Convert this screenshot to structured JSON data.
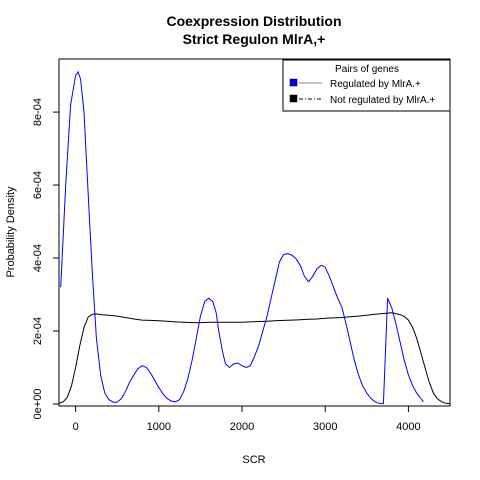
{
  "chart_data": {
    "type": "line",
    "title": "Coexpression Distribution",
    "subtitle": "Strict Regulon MlrA,+",
    "xlabel": "SCR",
    "ylabel": "Probability Density",
    "xlim": [
      -200,
      4500
    ],
    "ylim": [
      0,
      0.00094
    ],
    "xticks": [
      0,
      1000,
      2000,
      3000,
      4000
    ],
    "xtick_labels": [
      "0",
      "1000",
      "2000",
      "3000",
      "4000"
    ],
    "yticks": [
      0,
      0.0002,
      0.0004,
      0.0006,
      0.0008
    ],
    "ytick_labels": [
      "0e+00",
      "2e-04",
      "4e-04",
      "6e-04",
      "8e-04"
    ],
    "grid": false,
    "legend": {
      "title": "Pairs of genes",
      "placement": "top-right",
      "entries": [
        "Regulated by  MlrA.+",
        "Not regulated by  MlrA.+"
      ]
    },
    "series": [
      {
        "name": "Regulated by  MlrA.+",
        "color": "#0000ff",
        "x": [
          -180,
          -120,
          -60,
          0,
          30,
          60,
          100,
          150,
          200,
          250,
          300,
          350,
          400,
          450,
          500,
          550,
          600,
          650,
          700,
          750,
          800,
          850,
          900,
          950,
          1000,
          1050,
          1100,
          1150,
          1200,
          1250,
          1300,
          1350,
          1400,
          1450,
          1500,
          1550,
          1600,
          1650,
          1690,
          1720,
          1760,
          1800,
          1850,
          1900,
          1950,
          2000,
          2050,
          2100,
          2150,
          2200,
          2250,
          2300,
          2350,
          2400,
          2450,
          2500,
          2550,
          2600,
          2650,
          2700,
          2750,
          2800,
          2850,
          2900,
          2950,
          3000,
          3050,
          3100,
          3150,
          3200,
          3250,
          3300,
          3350,
          3400,
          3450,
          3500,
          3550,
          3600,
          3650,
          3700,
          3750,
          3800,
          3850,
          3900,
          3950,
          4000,
          4050,
          4100,
          4150,
          4180
        ],
        "y": [
          0.00032,
          0.0006,
          0.00082,
          0.0009,
          0.00091,
          0.00089,
          0.0008,
          0.00058,
          0.00036,
          0.00018,
          8e-05,
          3e-05,
          1.2e-05,
          5e-06,
          5e-06,
          1.5e-05,
          3.5e-05,
          6e-05,
          8e-05,
          9.7e-05,
          0.000105,
          0.0001,
          8.5e-05,
          6.5e-05,
          4.5e-05,
          2.8e-05,
          1.5e-05,
          8e-06,
          6e-06,
          1.2e-05,
          3.5e-05,
          7e-05,
          0.00012,
          0.00018,
          0.00024,
          0.00028,
          0.00029,
          0.00028,
          0.00025,
          0.0002,
          0.00015,
          0.00011,
          0.0001,
          0.00011,
          0.000112,
          0.000105,
          0.0001,
          0.000105,
          0.00013,
          0.00016,
          0.0002,
          0.00024,
          0.00029,
          0.00034,
          0.00039,
          0.00041,
          0.000412,
          0.000408,
          0.000398,
          0.00038,
          0.00035,
          0.000335,
          0.00035,
          0.00037,
          0.00038,
          0.000375,
          0.00035,
          0.00032,
          0.00029,
          0.000265,
          0.00022,
          0.00017,
          0.00012,
          8e-05,
          5e-05,
          3e-05,
          1.5e-05,
          6e-06,
          2e-06,
          1e-06,
          0.00029,
          0.000263,
          0.00022,
          0.00017,
          0.00012,
          8e-05,
          5e-05,
          3e-05,
          1.5e-05,
          6e-06
        ]
      },
      {
        "name": "Not regulated by  MlrA.+",
        "color": "#000000",
        "x": [
          -200,
          -150,
          -100,
          -50,
          0,
          50,
          100,
          150,
          200,
          250,
          300,
          400,
          500,
          600,
          700,
          800,
          900,
          1000,
          1100,
          1200,
          1300,
          1400,
          1500,
          1600,
          1700,
          1800,
          1900,
          2000,
          2100,
          2200,
          2300,
          2400,
          2500,
          2600,
          2700,
          2800,
          2900,
          3000,
          3100,
          3200,
          3300,
          3400,
          3500,
          3600,
          3700,
          3800,
          3900,
          3950,
          4000,
          4050,
          4100,
          4150,
          4200,
          4250,
          4300,
          4350,
          4400,
          4450,
          4500
        ],
        "y": [
          2e-06,
          6e-06,
          1.8e-05,
          5e-05,
          0.0001,
          0.00016,
          0.00021,
          0.000238,
          0.000246,
          0.000247,
          0.000245,
          0.000243,
          0.000241,
          0.000237,
          0.000233,
          0.00023,
          0.000229,
          0.000228,
          0.000227,
          0.000225,
          0.000224,
          0.000223,
          0.000223,
          0.000224,
          0.000224,
          0.000224,
          0.000224,
          0.000224,
          0.000225,
          0.000226,
          0.000227,
          0.000228,
          0.000229,
          0.00023,
          0.000231,
          0.000232,
          0.000233,
          0.000235,
          0.000236,
          0.000237,
          0.000239,
          0.000241,
          0.000243,
          0.000246,
          0.000248,
          0.00025,
          0.000245,
          0.00024,
          0.00023,
          0.00021,
          0.00018,
          0.00014,
          0.0001,
          6e-05,
          3e-05,
          1.4e-05,
          6e-06,
          2e-06,
          1e-06
        ]
      }
    ]
  }
}
